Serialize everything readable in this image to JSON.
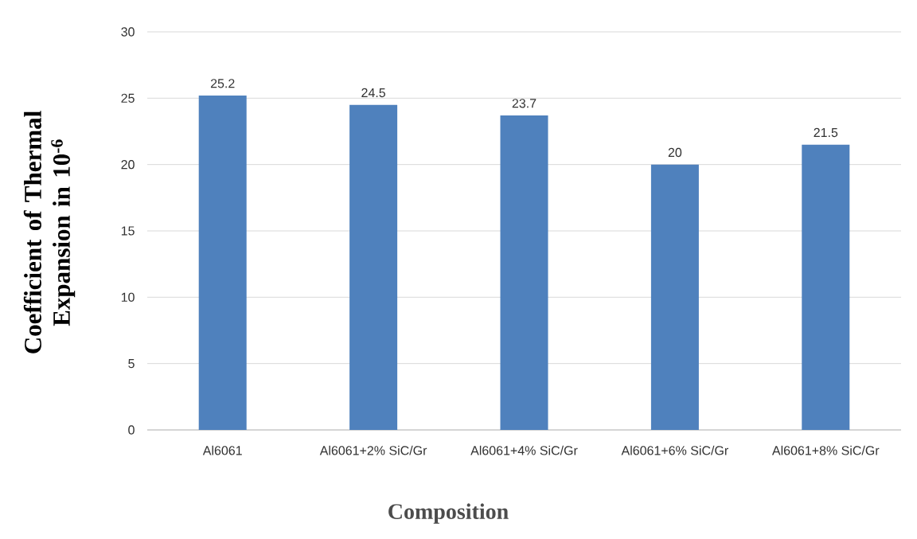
{
  "chart_data": {
    "type": "bar",
    "xlabel": "Composition",
    "ylabel": "Coefficient of Thermal Expansion in 10$^{-6}$",
    "categories": [
      "Al6061",
      "Al6061+2% SiC/Gr",
      "Al6061+4% SiC/Gr",
      "Al6061+6% SiC/Gr",
      "Al6061+8% SiC/Gr"
    ],
    "values": [
      25.2,
      24.5,
      23.7,
      20,
      21.5
    ],
    "color": "#4f81bd",
    "ylim": [
      0,
      30
    ],
    "yticks": [
      0,
      5,
      10,
      15,
      20,
      25,
      30
    ],
    "grid": "y",
    "data_labels": true
  }
}
